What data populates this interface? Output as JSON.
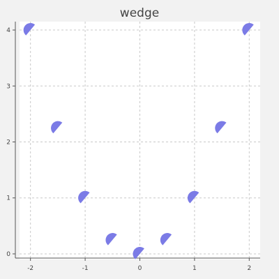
{
  "chart_data": {
    "type": "scatter",
    "title": "wedge",
    "xlabel": "",
    "ylabel": "",
    "xlim": [
      -2.2,
      2.2
    ],
    "ylim": [
      -0.1,
      4.15
    ],
    "xticks": [
      -2,
      -1,
      0,
      1,
      2
    ],
    "yticks": [
      0,
      1,
      2,
      3,
      4
    ],
    "xtick_labels": [
      "-2",
      "-1",
      "0",
      "1",
      "2"
    ],
    "ytick_labels": [
      "0",
      "1",
      "2",
      "3",
      "4"
    ],
    "grid": true,
    "marker": "wedge",
    "marker_color": "#7b7be6",
    "plot_background": "#ffffff",
    "outer_background": "#f2f2f2",
    "series": [
      {
        "points": [
          {
            "x": -2.0,
            "y": 4.0
          },
          {
            "x": -1.5,
            "y": 2.25
          },
          {
            "x": -1.0,
            "y": 1.0
          },
          {
            "x": -0.5,
            "y": 0.25
          },
          {
            "x": 0.0,
            "y": 0.0
          },
          {
            "x": 0.5,
            "y": 0.25
          },
          {
            "x": 1.0,
            "y": 1.0
          },
          {
            "x": 1.5,
            "y": 2.25
          },
          {
            "x": 2.0,
            "y": 4.0
          }
        ]
      }
    ]
  }
}
